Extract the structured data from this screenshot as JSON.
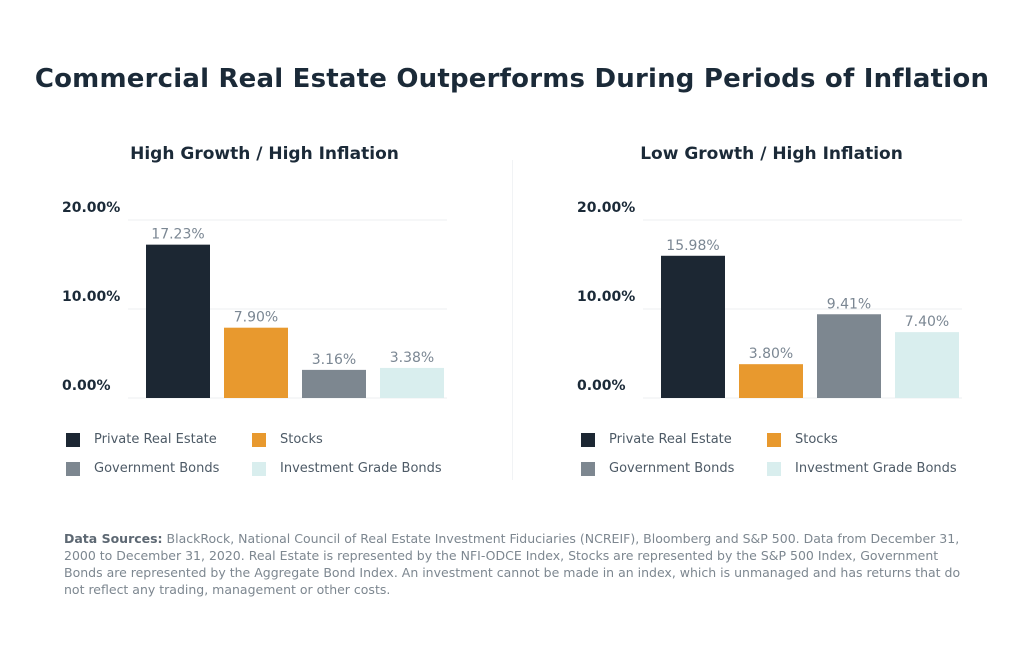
{
  "title": "Commercial Real Estate Outperforms During Periods of Inflation",
  "colors": {
    "private_real_estate": "#1c2733",
    "stocks": "#e8992e",
    "government_bonds": "#7d8790",
    "investment_grade_bonds": "#d9eeee"
  },
  "chart_data": [
    {
      "type": "bar",
      "title": "High Growth / High Inflation",
      "categories": [
        "Private Real Estate",
        "Stocks",
        "Government Bonds",
        "Investment Grade Bonds"
      ],
      "values": [
        17.23,
        7.9,
        3.16,
        3.38
      ],
      "value_labels": [
        "17.23%",
        "7.90%",
        "3.16%",
        "3.38%"
      ],
      "yticks": [
        0,
        10,
        20
      ],
      "ytick_labels": [
        "0.00%",
        "10.00%",
        "20.00%"
      ],
      "ylim": [
        0,
        20
      ],
      "xlabel": "",
      "ylabel": ""
    },
    {
      "type": "bar",
      "title": "Low Growth / High Inflation",
      "categories": [
        "Private Real Estate",
        "Stocks",
        "Government Bonds",
        "Investment Grade Bonds"
      ],
      "values": [
        15.98,
        3.8,
        9.41,
        7.4
      ],
      "value_labels": [
        "15.98%",
        "3.80%",
        "9.41%",
        "7.40%"
      ],
      "yticks": [
        0,
        10,
        20
      ],
      "ytick_labels": [
        "0.00%",
        "10.00%",
        "20.00%"
      ],
      "ylim": [
        0,
        20
      ],
      "xlabel": "",
      "ylabel": ""
    }
  ],
  "legend": [
    "Private Real Estate",
    "Stocks",
    "Government Bonds",
    "Investment Grade Bonds"
  ],
  "footnote": {
    "label": "Data Sources:",
    "text": " BlackRock, National Council of Real Estate Investment Fiduciaries (NCREIF), Bloomberg and S&P 500. Data from December 31, 2000 to December 31, 2020. Real Estate is represented by the NFI-ODCE Index, Stocks are represented by the S&P 500 Index, Government Bonds are represented by the Aggregate Bond Index. An investment cannot be made in an index, which is unmanaged and has returns that do not reflect any trading, management or other costs."
  }
}
